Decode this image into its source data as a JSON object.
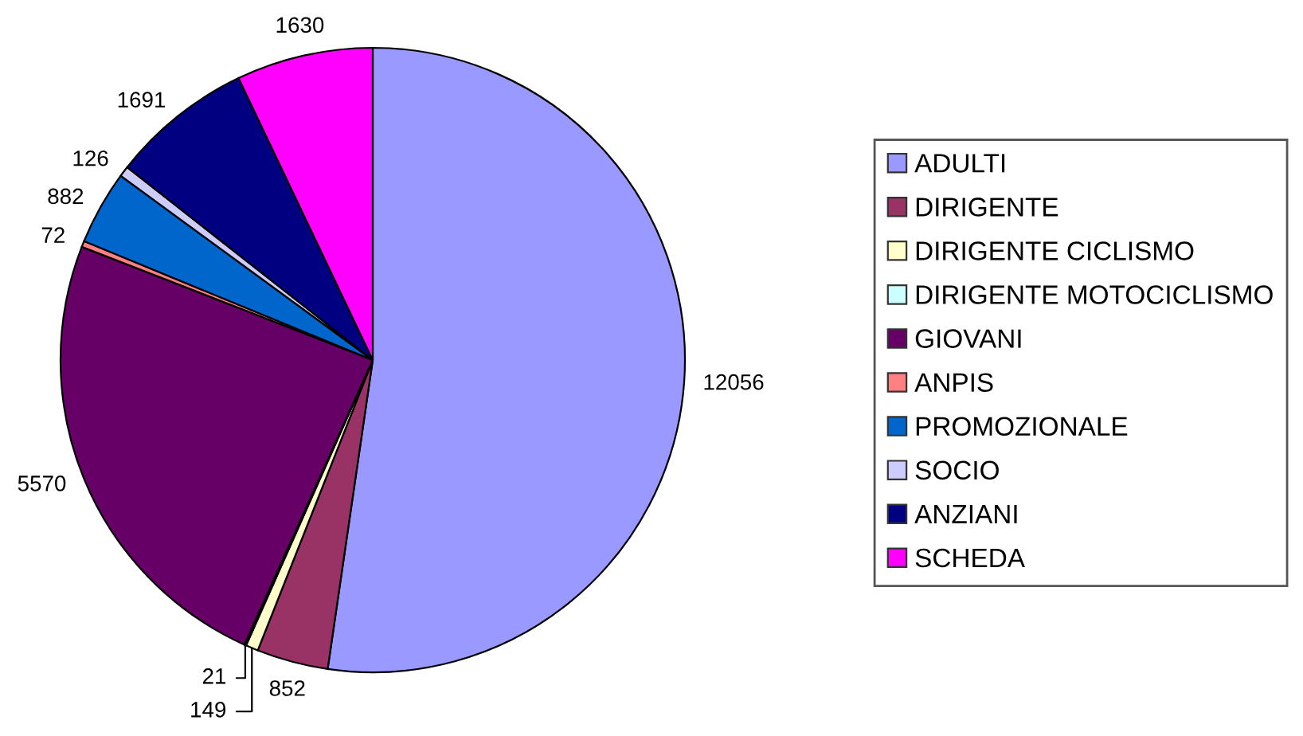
{
  "chart_data": {
    "type": "pie",
    "categories": [
      "ADULTI",
      "DIRIGENTE",
      "DIRIGENTE CICLISMO",
      "DIRIGENTE MOTOCICLISMO",
      "GIOVANI",
      "ANPIS",
      "PROMOZIONALE",
      "SOCIO",
      "ANZIANI",
      "SCHEDA"
    ],
    "values": [
      12056,
      852,
      149,
      21,
      5570,
      72,
      882,
      126,
      1691,
      1630
    ],
    "colors": [
      "#9999ff",
      "#993366",
      "#ffffcc",
      "#ccffff",
      "#660066",
      "#ff8080",
      "#0066cc",
      "#ccccff",
      "#000080",
      "#ff00ff"
    ],
    "data_labels": true,
    "legend": "right"
  }
}
